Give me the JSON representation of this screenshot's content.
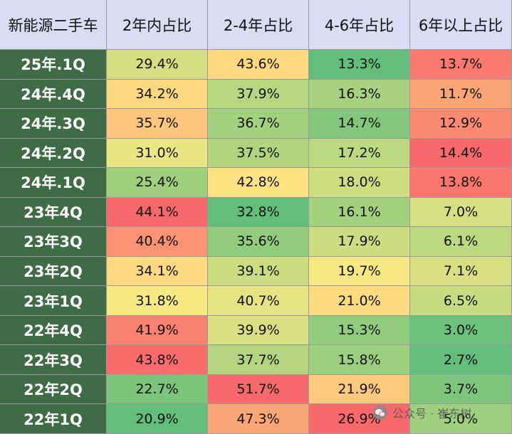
{
  "chart_data": {
    "type": "table",
    "columns": [
      "新能源二手车",
      "2年内占比",
      "2-4年占比",
      "4-6年占比",
      "6年以上占比"
    ],
    "rows": [
      {
        "label": "25年.1Q",
        "values": [
          "29.4%",
          "43.6%",
          "13.3%",
          "13.7%"
        ]
      },
      {
        "label": "24年.4Q",
        "values": [
          "34.2%",
          "37.9%",
          "16.3%",
          "11.7%"
        ]
      },
      {
        "label": "24年.3Q",
        "values": [
          "35.7%",
          "36.7%",
          "14.7%",
          "12.9%"
        ]
      },
      {
        "label": "24年.2Q",
        "values": [
          "31.0%",
          "37.5%",
          "17.2%",
          "14.4%"
        ]
      },
      {
        "label": "24年.1Q",
        "values": [
          "25.4%",
          "42.8%",
          "18.0%",
          "13.8%"
        ]
      },
      {
        "label": "23年4Q",
        "values": [
          "44.1%",
          "32.8%",
          "16.1%",
          "7.0%"
        ]
      },
      {
        "label": "23年3Q",
        "values": [
          "40.4%",
          "35.6%",
          "17.9%",
          "6.1%"
        ]
      },
      {
        "label": "23年2Q",
        "values": [
          "34.1%",
          "39.1%",
          "19.7%",
          "7.1%"
        ]
      },
      {
        "label": "23年1Q",
        "values": [
          "31.8%",
          "40.7%",
          "21.0%",
          "6.5%"
        ]
      },
      {
        "label": "22年4Q",
        "values": [
          "41.9%",
          "39.9%",
          "15.3%",
          "3.0%"
        ]
      },
      {
        "label": "22年3Q",
        "values": [
          "43.8%",
          "37.7%",
          "15.8%",
          "2.7%"
        ]
      },
      {
        "label": "22年2Q",
        "values": [
          "22.7%",
          "51.7%",
          "21.9%",
          "3.7%"
        ]
      },
      {
        "label": "22年1Q",
        "values": [
          "20.9%",
          "47.3%",
          "26.9%",
          "5.0%"
        ]
      }
    ],
    "color_scale": {
      "low": "#63be7b",
      "mid": "#ffeb84",
      "high": "#f8696b"
    },
    "row_label_color": "#3f6b45",
    "header_color": "#d9dcf2"
  },
  "watermark": {
    "text": "公众号 · 崔东树"
  }
}
